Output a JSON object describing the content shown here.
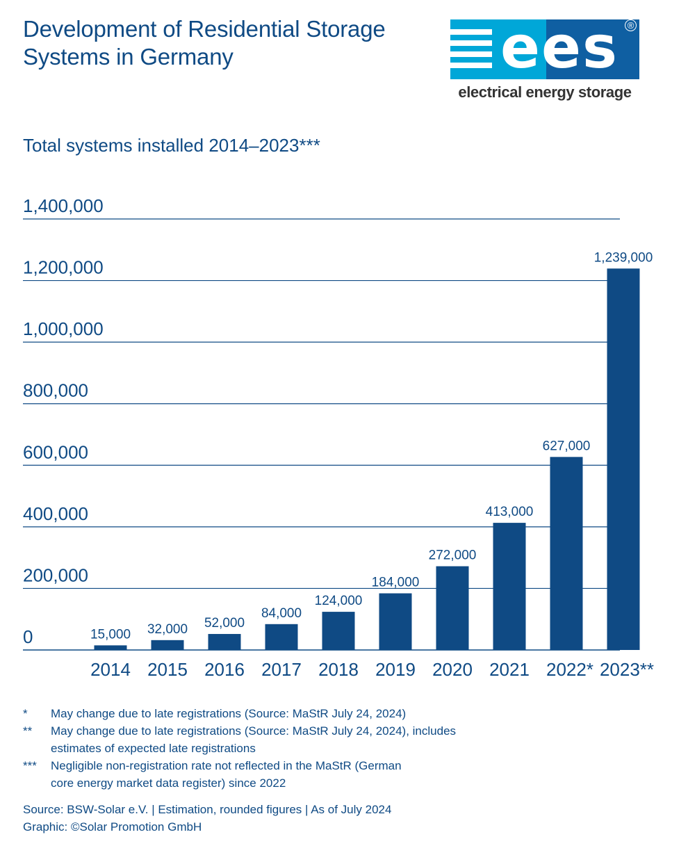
{
  "title": "Development of Residential Storage Systems in Germany",
  "subtitle": "Total systems installed 2014–2023***",
  "logo": {
    "letters": "ees",
    "registered": "®",
    "tagline": "electrical energy storage",
    "colors": {
      "light_blue": "#00a7d8",
      "dark_blue": "#0f5fa2"
    }
  },
  "chart_data": {
    "type": "bar",
    "categories": [
      "2014",
      "2015",
      "2016",
      "2017",
      "2018",
      "2019",
      "2020",
      "2021",
      "2022*",
      "2023**"
    ],
    "values": [
      15000,
      32000,
      52000,
      84000,
      124000,
      184000,
      272000,
      413000,
      627000,
      1239000
    ],
    "value_labels": [
      "15,000",
      "32,000",
      "52,000",
      "84,000",
      "124,000",
      "184,000",
      "272,000",
      "413,000",
      "627,000",
      "1,239,000"
    ],
    "yticks": [
      0,
      200000,
      400000,
      600000,
      800000,
      1000000,
      1200000,
      1400000
    ],
    "ytick_labels": [
      "0",
      "200,000",
      "400,000",
      "600,000",
      "800,000",
      "1,000,000",
      "1,200,000",
      "1,400,000"
    ],
    "ylim": [
      0,
      1400000
    ],
    "grid": true,
    "colors": {
      "bar": "#0f4a84",
      "grid": "#0f4a84",
      "text": "#0f4a84"
    }
  },
  "footnotes": [
    {
      "mark": "*",
      "text": "May change due to late registrations (Source: MaStR July 24, 2024)"
    },
    {
      "mark": "**",
      "text": "May change due to late registrations (Source: MaStR July 24, 2024), includes estimates of expected late registrations"
    },
    {
      "mark": "***",
      "text": "Negligible non-registration rate not reflected in the MaStR (German core energy market data register) since 2022"
    }
  ],
  "source_line": "Source: BSW-Solar e.V. | Estimation, rounded figures | As of July 2024",
  "graphic_line": "Graphic: ©Solar Promotion GmbH"
}
